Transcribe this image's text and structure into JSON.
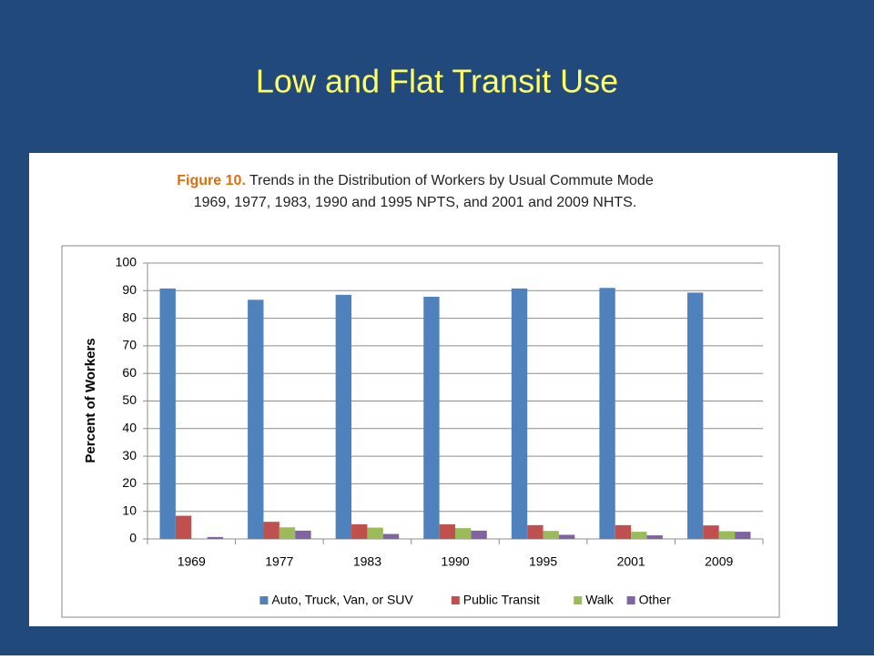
{
  "slide_title": "Low and Flat Transit Use",
  "chart_data": {
    "type": "bar",
    "figure_label": "Figure 10.",
    "title": "Trends in the Distribution of Workers by Usual Commute Mode",
    "subtitle": "1969, 1977, 1983, 1990 and 1995 NPTS, and 2001 and 2009 NHTS.",
    "y_label": "Percent of Workers",
    "categories": [
      "1969",
      "1977",
      "1983",
      "1990",
      "1995",
      "2001",
      "2009"
    ],
    "series": [
      {
        "name": "Auto, Truck, Van, or SUV",
        "color": "#4f81bd",
        "values": [
          90.8,
          86.7,
          88.5,
          87.8,
          90.8,
          91.0,
          89.3
        ]
      },
      {
        "name": "Public Transit",
        "color": "#c0504d",
        "values": [
          8.4,
          6.2,
          5.3,
          5.3,
          5.0,
          5.0,
          4.9
        ]
      },
      {
        "name": "Walk",
        "color": "#9bbb59",
        "values": [
          null,
          4.2,
          4.1,
          3.9,
          2.9,
          2.6,
          2.8
        ]
      },
      {
        "name": "Other",
        "color": "#8064a2",
        "values": [
          0.7,
          3.0,
          1.8,
          3.0,
          1.5,
          1.3,
          2.6
        ]
      }
    ],
    "ylim": [
      0,
      100
    ],
    "yticks": [
      0,
      10,
      20,
      30,
      40,
      50,
      60,
      70,
      80,
      90,
      100
    ],
    "grid": true,
    "legend": "bottom"
  }
}
